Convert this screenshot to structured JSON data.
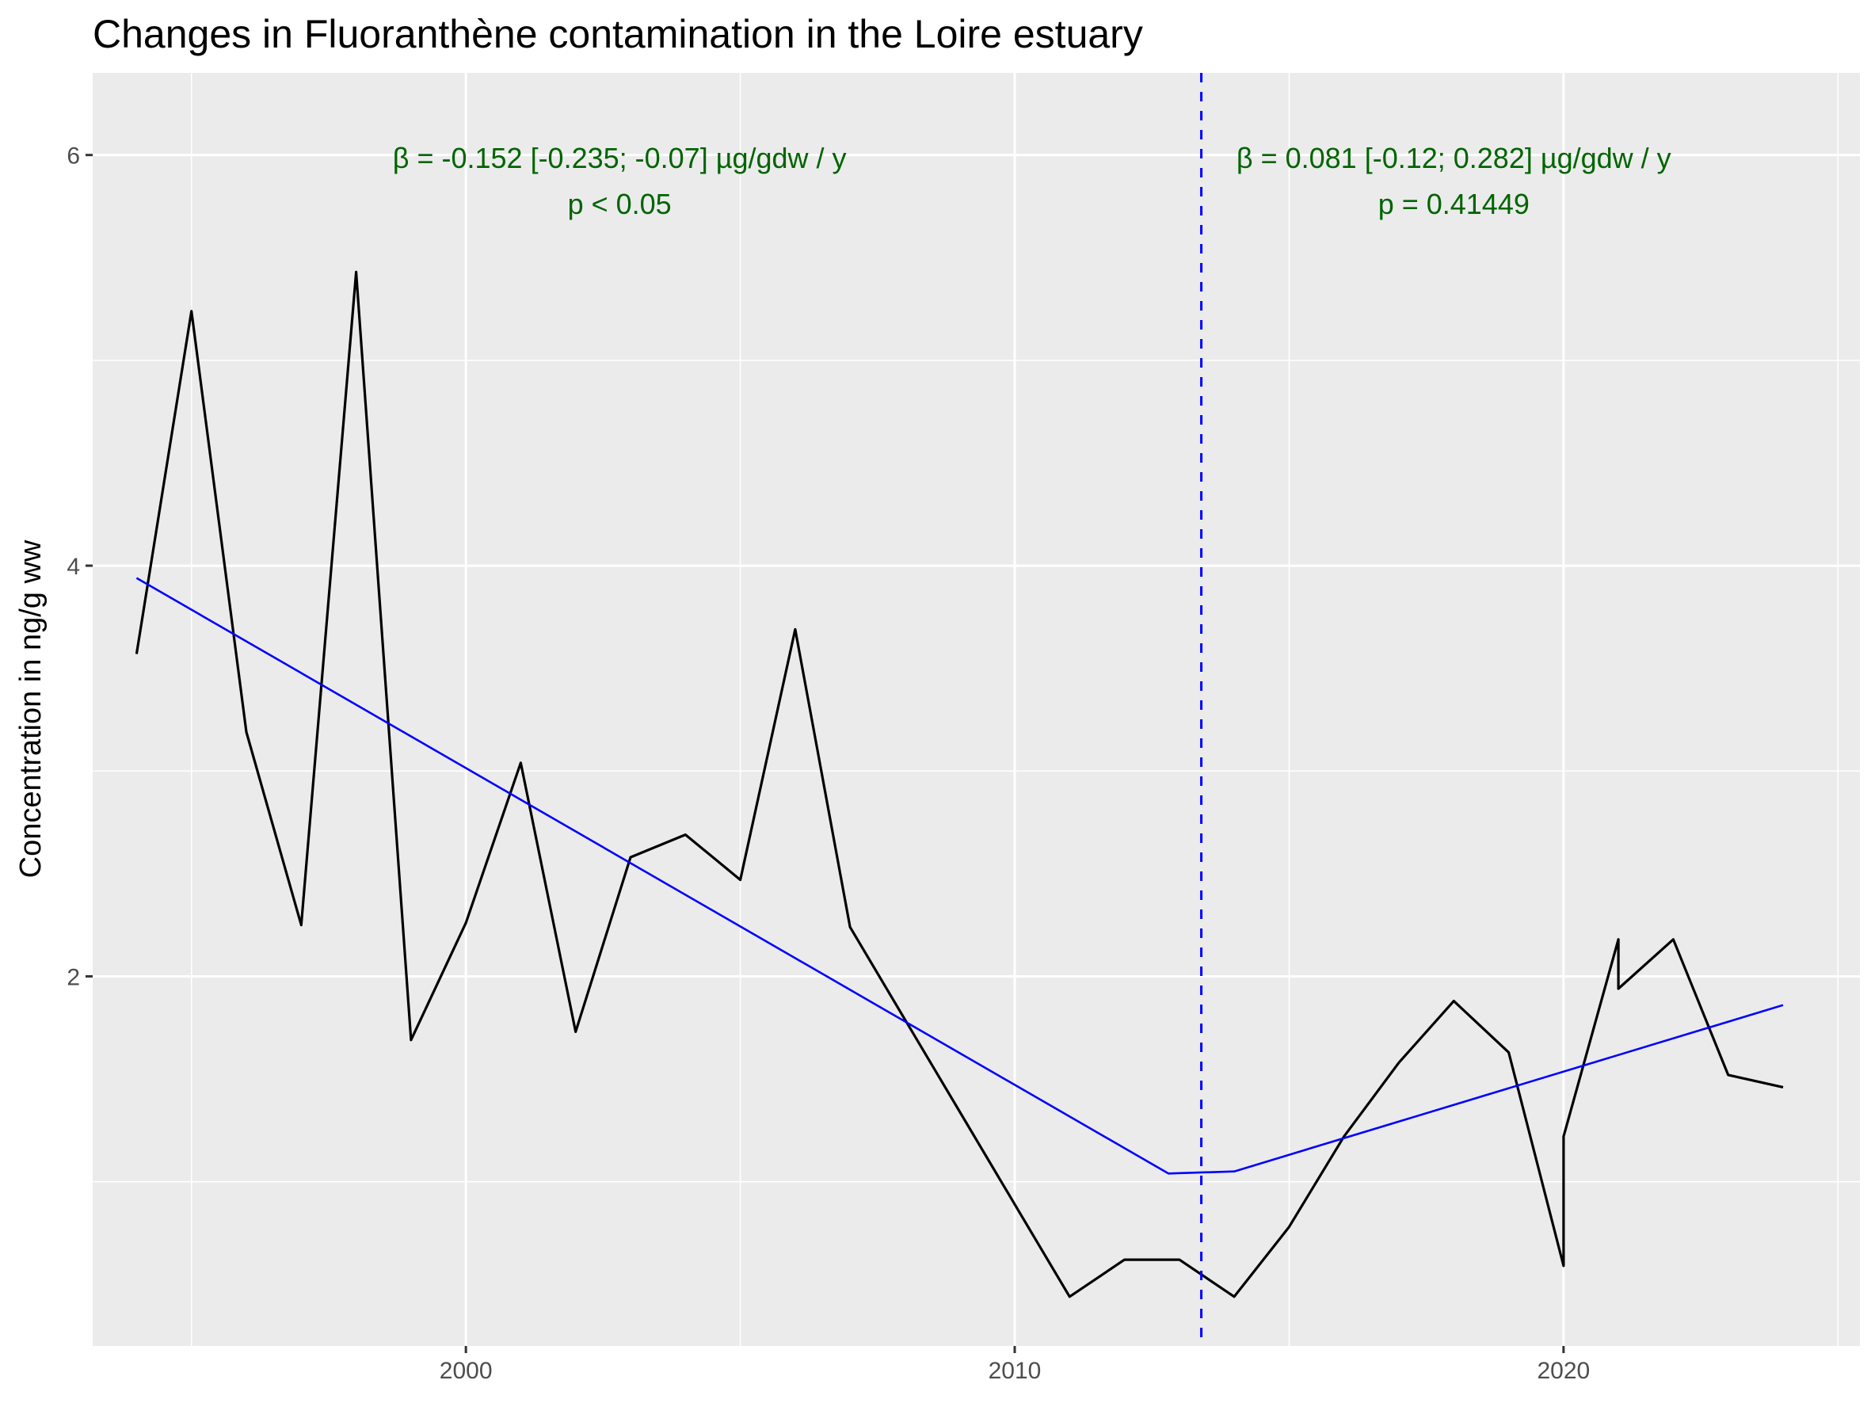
{
  "chart_data": {
    "type": "line",
    "title": "Changes in Fluoranthène contamination in the Loire estuary",
    "xlabel": "",
    "ylabel": "Concentration in ng/g ww",
    "xlim": [
      1993.2,
      2025.4
    ],
    "ylim": [
      0.2,
      6.4
    ],
    "x_ticks": [
      2000,
      2010,
      2020
    ],
    "x_tick_labels": [
      "2000",
      "2010",
      "2020"
    ],
    "y_ticks": [
      2,
      4,
      6
    ],
    "y_tick_labels": [
      "2",
      "4",
      "6"
    ],
    "grid": true,
    "background": "#ebebeb",
    "series": [
      {
        "color": "#000000",
        "x": [
          1994,
          1995,
          1996,
          1997,
          1998,
          1999,
          2000,
          2001,
          2002,
          2003,
          2004,
          2005,
          2006,
          2007,
          2008,
          2009,
          2010,
          2011,
          2012,
          2013,
          2014,
          2015,
          2016,
          2017,
          2018,
          2019,
          2020,
          2020,
          2021,
          2021,
          2022,
          2023,
          2024
        ],
        "values": [
          3.57,
          5.24,
          3.19,
          2.25,
          5.43,
          1.69,
          2.26,
          3.04,
          1.73,
          2.58,
          2.69,
          2.47,
          3.69,
          2.24,
          1.79,
          1.34,
          0.89,
          0.44,
          0.62,
          0.62,
          0.44,
          0.78,
          1.22,
          1.58,
          1.88,
          1.63,
          0.59,
          1.22,
          2.18,
          1.94,
          2.18,
          1.52,
          1.46
        ]
      },
      {
        "color": "#0000ff",
        "x": [
          1994,
          2012.8,
          2014,
          2024
        ],
        "values": [
          3.94,
          1.04,
          1.05,
          1.86
        ]
      }
    ],
    "breakpoint": {
      "x": 2013.4,
      "color": "#0000ff"
    },
    "annotations": [
      {
        "line1": "β = -0.152 [-0.235; -0.07] µg/gdw / y",
        "line2": "p < 0.05",
        "x": 2002.8,
        "color": "#006400"
      },
      {
        "line1": "β = 0.081 [-0.12; 0.282] µg/gdw / y",
        "line2": "p = 0.41449",
        "x": 2018,
        "color": "#006400"
      }
    ]
  }
}
